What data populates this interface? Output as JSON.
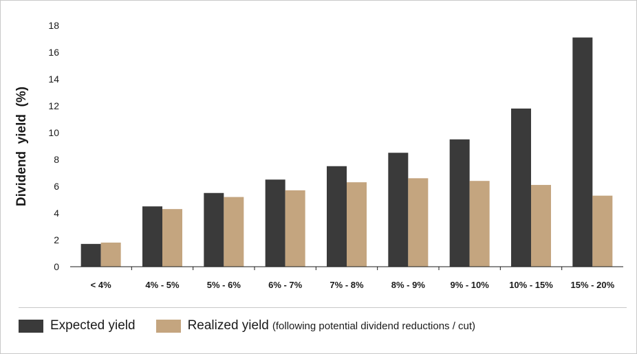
{
  "chart_data": {
    "type": "bar",
    "categories": [
      "< 4%",
      "4% - 5%",
      "5% - 6%",
      "6% - 7%",
      "7% - 8%",
      "8% - 9%",
      "9% - 10%",
      "10% - 15%",
      "15% - 20%"
    ],
    "series": [
      {
        "name": "Expected yield",
        "values": [
          1.7,
          4.5,
          5.5,
          6.5,
          7.5,
          8.5,
          9.5,
          11.8,
          17.1
        ],
        "color": "#3a3a3a"
      },
      {
        "name": "Realized yield",
        "values": [
          1.8,
          4.3,
          5.2,
          5.7,
          6.3,
          6.6,
          6.4,
          6.1,
          5.3
        ],
        "color": "#c4a57f"
      }
    ],
    "ylabel": "Dividend  yield  (%)",
    "xlabel": "",
    "ylim": [
      0,
      18
    ],
    "yticks": [
      0,
      2,
      4,
      6,
      8,
      10,
      12,
      14,
      16,
      18
    ],
    "grid": false,
    "legend_position": "bottom"
  },
  "legend": {
    "expected_label": "Expected yield",
    "realized_label": "Realized yield",
    "realized_note": "(following potential dividend reductions / cut)"
  }
}
